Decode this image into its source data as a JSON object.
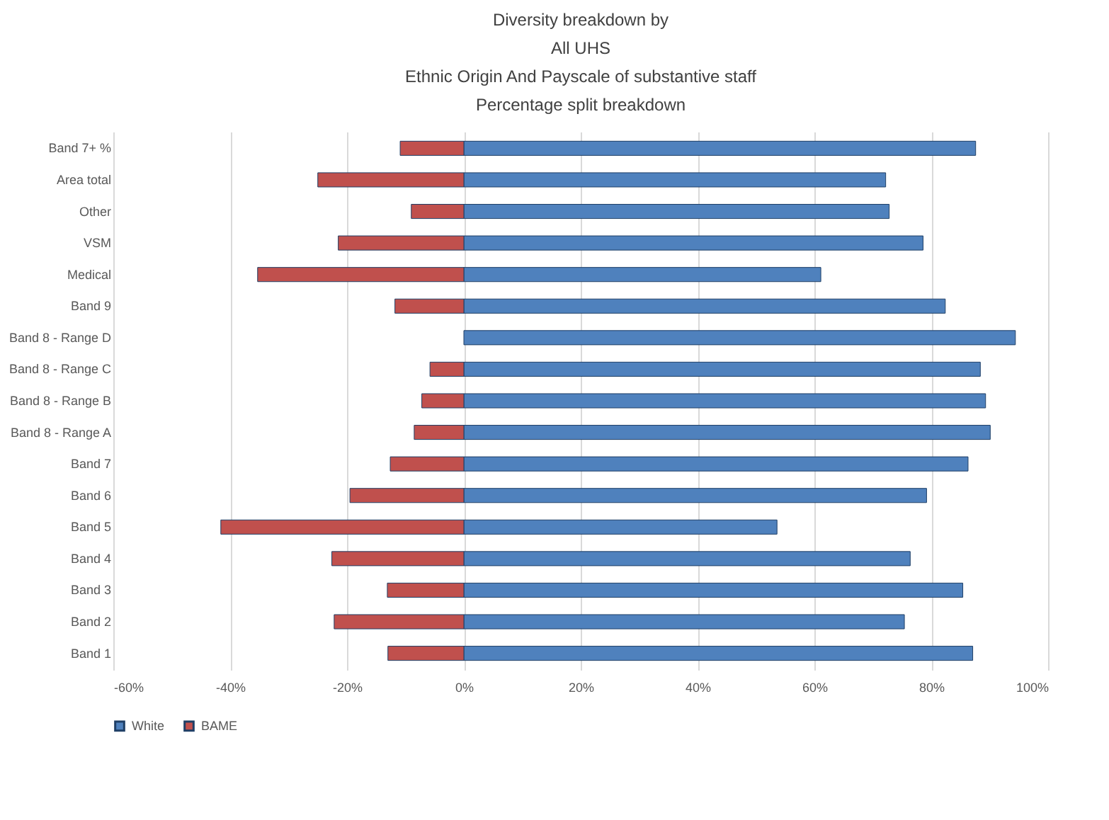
{
  "chart_data": {
    "type": "bar",
    "orientation": "horizontal",
    "title": "Diversity breakdown by\nAll UHS\nEthnic Origin And Payscale of substantive staff\nPercentage split breakdown",
    "categories": [
      "Band 7+ %",
      "Area total",
      "Other",
      "VSM",
      "Medical",
      "Band 9",
      "Band 8 - Range D",
      "Band 8 - Range C",
      "Band 8 - Range B",
      "Band 8 - Range A",
      "Band 7",
      "Band 6",
      "Band 5",
      "Band 4",
      "Band 3",
      "Band 2",
      "Band 1"
    ],
    "series": [
      {
        "name": "White",
        "color": "#4f81bd",
        "values": [
          87.6,
          72.2,
          72.8,
          78.6,
          61.1,
          82.4,
          94.4,
          88.4,
          89.3,
          90.1,
          86.3,
          79.2,
          53.6,
          76.4,
          85.4,
          75.4,
          87.1
        ]
      },
      {
        "name": "BAME",
        "color": "#c0504d",
        "values": [
          -10.9,
          -25.0,
          -9.0,
          -21.5,
          -35.3,
          -11.8,
          null,
          -5.8,
          -7.2,
          -8.5,
          -12.6,
          -19.5,
          -41.6,
          -22.6,
          -13.1,
          -22.2,
          -13.0
        ]
      }
    ],
    "xlim": [
      -60,
      100
    ],
    "xticks": [
      {
        "value": -60,
        "label": "-60%"
      },
      {
        "value": -40,
        "label": "-40%"
      },
      {
        "value": -20,
        "label": "-20%"
      },
      {
        "value": 0,
        "label": "0%"
      },
      {
        "value": 20,
        "label": "20%"
      },
      {
        "value": 40,
        "label": "40%"
      },
      {
        "value": 60,
        "label": "60%"
      },
      {
        "value": 80,
        "label": "80%"
      },
      {
        "value": 100,
        "label": "100%"
      }
    ],
    "grid": "x",
    "legend": "bottom",
    "stacked": true
  }
}
